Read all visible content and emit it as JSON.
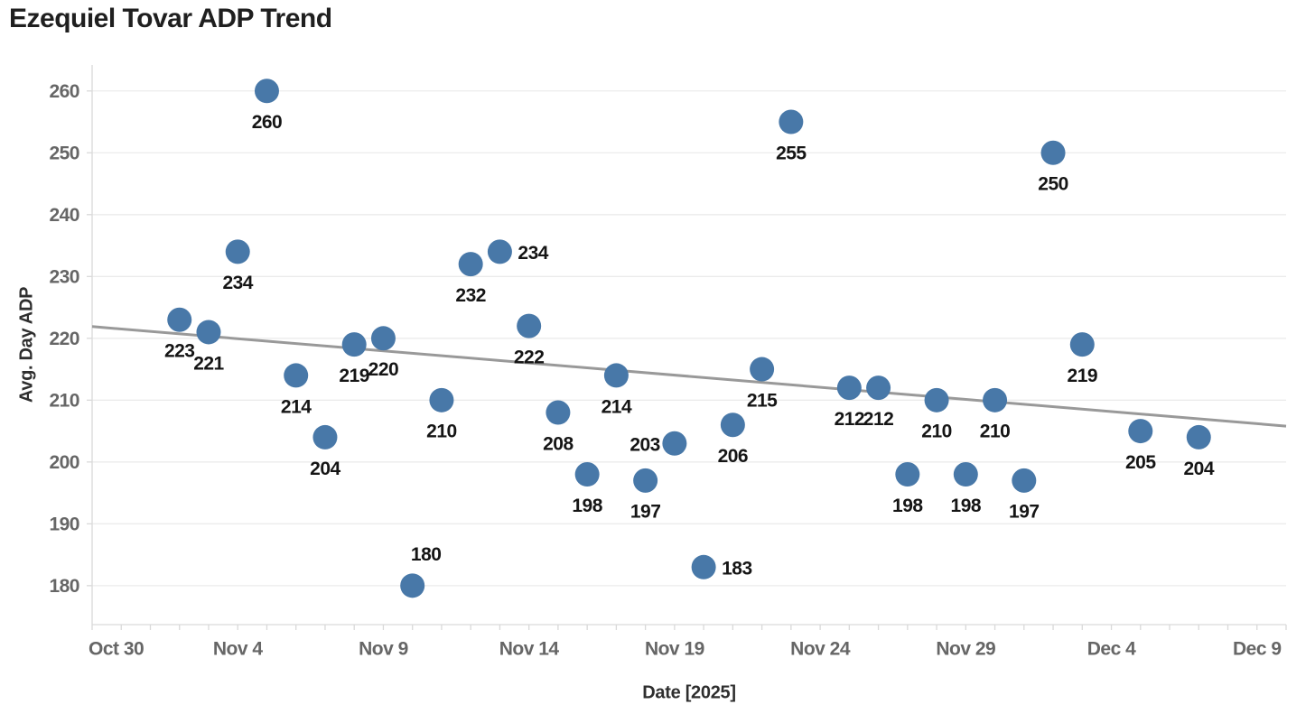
{
  "chart_data": {
    "type": "scatter",
    "title": "Ezequiel Tovar ADP Trend",
    "xlabel": "Date [2025]",
    "ylabel": "Avg. Day ADP",
    "legend": "none",
    "grid": "horizontal",
    "background": "#ffffff",
    "marker_color": "#4878a8",
    "trend_color": "#999999",
    "grid_color": "#ebebeb",
    "axis_line_color": "#d9d9d9",
    "tick_label_color": "#666666",
    "data_label_color": "#151515",
    "title_color": "#1f1f1f",
    "axis_title_color": "#2e2e2e",
    "ylim": [
      173.7,
      264.2
    ],
    "xlim_days": [
      0,
      41
    ],
    "y_ticks": [
      180,
      190,
      200,
      210,
      220,
      230,
      240,
      250,
      260
    ],
    "x_ticks": [
      {
        "label": "Oct 30",
        "day": 0
      },
      {
        "label": "Nov 4",
        "day": 5
      },
      {
        "label": "Nov 9",
        "day": 10
      },
      {
        "label": "Nov 14",
        "day": 15
      },
      {
        "label": "Nov 19",
        "day": 20
      },
      {
        "label": "Nov 24",
        "day": 25
      },
      {
        "label": "Nov 29",
        "day": 30
      },
      {
        "label": "Dec 4",
        "day": 35
      },
      {
        "label": "Dec 9",
        "day": 40
      }
    ],
    "minor_tick_every_day": 1,
    "points": [
      {
        "date": "Nov 2",
        "day": 3,
        "adp": 223,
        "label": "223",
        "label_pos": "below"
      },
      {
        "date": "Nov 3",
        "day": 4,
        "adp": 221,
        "label": "221",
        "label_pos": "below"
      },
      {
        "date": "Nov 4",
        "day": 5,
        "adp": 234,
        "label": "234",
        "label_pos": "below"
      },
      {
        "date": "Nov 5",
        "day": 6,
        "adp": 260,
        "label": "260",
        "label_pos": "below"
      },
      {
        "date": "Nov 6",
        "day": 7,
        "adp": 214,
        "label": "214",
        "label_pos": "below"
      },
      {
        "date": "Nov 7",
        "day": 8,
        "adp": 204,
        "label": "204",
        "label_pos": "below"
      },
      {
        "date": "Nov 8",
        "day": 9,
        "adp": 219,
        "label": "219",
        "label_pos": "below"
      },
      {
        "date": "Nov 9",
        "day": 10,
        "adp": 220,
        "label": "220",
        "label_pos": "below"
      },
      {
        "date": "Nov 10",
        "day": 11,
        "adp": 180,
        "label": "180",
        "label_pos": "above"
      },
      {
        "date": "Nov 11",
        "day": 12,
        "adp": 210,
        "label": "210",
        "label_pos": "below"
      },
      {
        "date": "Nov 12",
        "day": 13,
        "adp": 232,
        "label": "232",
        "label_pos": "below"
      },
      {
        "date": "Nov 13",
        "day": 14,
        "adp": 234,
        "label": "234",
        "label_pos": "right"
      },
      {
        "date": "Nov 14",
        "day": 15,
        "adp": 222,
        "label": "222",
        "label_pos": "below"
      },
      {
        "date": "Nov 15",
        "day": 16,
        "adp": 208,
        "label": "208",
        "label_pos": "below"
      },
      {
        "date": "Nov 16",
        "day": 17,
        "adp": 198,
        "label": "198",
        "label_pos": "below"
      },
      {
        "date": "Nov 17",
        "day": 18,
        "adp": 214,
        "label": "214",
        "label_pos": "below"
      },
      {
        "date": "Nov 18",
        "day": 19,
        "adp": 197,
        "label": "197",
        "label_pos": "below"
      },
      {
        "date": "Nov 19",
        "day": 20,
        "adp": 203,
        "label": "203",
        "label_pos": "left"
      },
      {
        "date": "Nov 20",
        "day": 21,
        "adp": 183,
        "label": "183",
        "label_pos": "right"
      },
      {
        "date": "Nov 21",
        "day": 22,
        "adp": 206,
        "label": "206",
        "label_pos": "below"
      },
      {
        "date": "Nov 22",
        "day": 23,
        "adp": 215,
        "label": "215",
        "label_pos": "below"
      },
      {
        "date": "Nov 23",
        "day": 24,
        "adp": 255,
        "label": "255",
        "label_pos": "below"
      },
      {
        "date": "Nov 25",
        "day": 26,
        "adp": 212,
        "label": "212",
        "label_pos": "below"
      },
      {
        "date": "Nov 26",
        "day": 27,
        "adp": 212,
        "label": "212",
        "label_pos": "below"
      },
      {
        "date": "Nov 27",
        "day": 28,
        "adp": 198,
        "label": "198",
        "label_pos": "below"
      },
      {
        "date": "Nov 28",
        "day": 29,
        "adp": 210,
        "label": "210",
        "label_pos": "below"
      },
      {
        "date": "Nov 29",
        "day": 30,
        "adp": 198,
        "label": "198",
        "label_pos": "below"
      },
      {
        "date": "Nov 30",
        "day": 31,
        "adp": 210,
        "label": "210",
        "label_pos": "below"
      },
      {
        "date": "Dec 1",
        "day": 32,
        "adp": 197,
        "label": "197",
        "label_pos": "below"
      },
      {
        "date": "Dec 2",
        "day": 33,
        "adp": 250,
        "label": "250",
        "label_pos": "below"
      },
      {
        "date": "Dec 3",
        "day": 34,
        "adp": 219,
        "label": "219",
        "label_pos": "below"
      },
      {
        "date": "Dec 5",
        "day": 36,
        "adp": 205,
        "label": "205",
        "label_pos": "below"
      },
      {
        "date": "Dec 7",
        "day": 38,
        "adp": 204,
        "label": "204",
        "label_pos": "below"
      }
    ],
    "trendline": {
      "start_day": 0,
      "start_value": 221.9,
      "end_day": 41,
      "end_value": 205.8
    }
  }
}
